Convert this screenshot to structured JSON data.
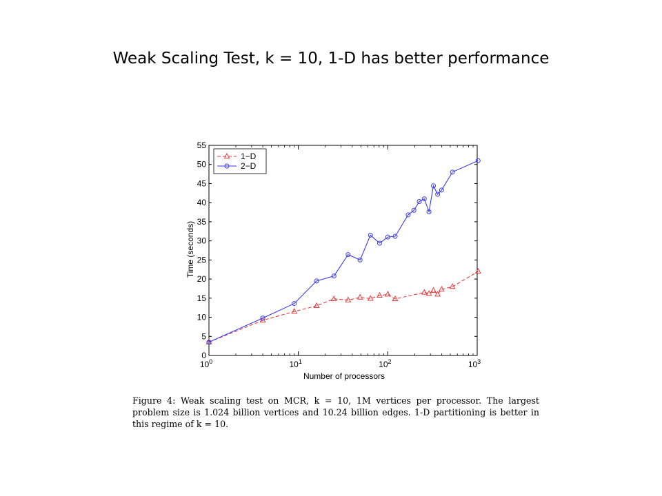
{
  "slide": {
    "title": "Weak Scaling Test, k = 10, 1-D has better performance"
  },
  "caption": {
    "lines": [
      "Figure 4:  Weak scaling test on MCR, k = 10, 1M vertices per processor.  The largest",
      "problem size is 1.024 billion vertices and 10.24 billion edges.  1-D partitioning is better in",
      "this regime of k = 10."
    ]
  },
  "chart_data": {
    "type": "line",
    "title": "",
    "xlabel": "Number of processors",
    "ylabel": "Time (seconds)",
    "xscale": "log",
    "xlim": [
      1,
      1000
    ],
    "ylim": [
      0,
      55
    ],
    "xticks": [
      {
        "value": 1,
        "base": "10",
        "exp": "0"
      },
      {
        "value": 10,
        "base": "10",
        "exp": "1"
      },
      {
        "value": 100,
        "base": "10",
        "exp": "2"
      },
      {
        "value": 1000,
        "base": "10",
        "exp": "3"
      }
    ],
    "yticks": [
      "0",
      "5",
      "10",
      "15",
      "20",
      "25",
      "30",
      "35",
      "40",
      "45",
      "50",
      "55"
    ],
    "grid": false,
    "legend_position": "top-left",
    "series": [
      {
        "name": "1−D",
        "color": "#e8393a",
        "line_style": "dashed",
        "marker": "triangle",
        "x": [
          1,
          4,
          9,
          16,
          25,
          36,
          49,
          64,
          81,
          100,
          121,
          256,
          289,
          324,
          361,
          400,
          529,
          1024
        ],
        "y": [
          3.5,
          9.2,
          11.5,
          13.0,
          14.8,
          14.5,
          15.2,
          14.9,
          15.7,
          16.0,
          14.8,
          16.5,
          16.2,
          17.0,
          16.0,
          17.3,
          18.0,
          22.0
        ]
      },
      {
        "name": "2−D",
        "color": "#3a3aee",
        "line_style": "solid",
        "marker": "circle",
        "x": [
          1,
          4,
          9,
          16,
          25,
          36,
          49,
          64,
          81,
          100,
          121,
          169,
          196,
          225,
          256,
          289,
          324,
          361,
          400,
          529,
          1024
        ],
        "y": [
          3.5,
          9.8,
          13.6,
          19.5,
          20.8,
          26.4,
          25.0,
          31.5,
          29.4,
          31.0,
          31.2,
          36.8,
          38.0,
          40.3,
          41.0,
          37.6,
          44.4,
          42.2,
          43.3,
          48.0,
          51.0
        ]
      }
    ]
  }
}
